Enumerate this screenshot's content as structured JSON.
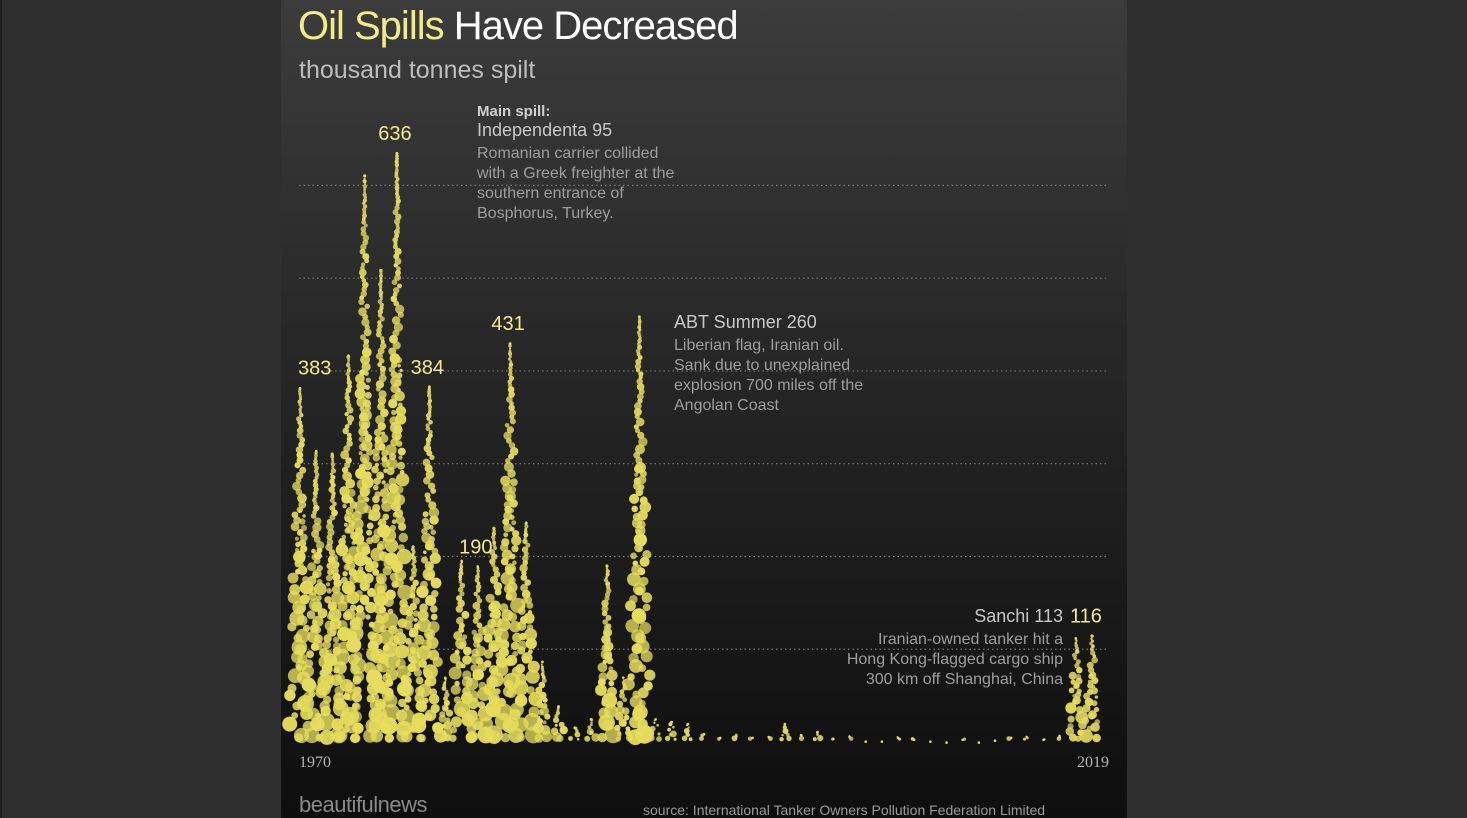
{
  "title": {
    "highlight": "Oil Spills",
    "rest": " Have Decreased"
  },
  "subtitle": "thousand tonnes spilt",
  "footer": {
    "brand": "beautifulnews",
    "source": "source: International Tanker Owners Pollution Federation Limited"
  },
  "colors": {
    "bubble": "#e6dd5c",
    "highlight": "#f2eb8a",
    "gridline": "#7a7a7a",
    "background_top": "#3c3c3c",
    "background_bottom": "#0e0e0e"
  },
  "chart_data": {
    "type": "bubble-column",
    "title": "Oil Spills Have Decreased",
    "ylabel": "thousand tonnes spilt",
    "x_start": 1970,
    "x_end": 2019,
    "ylim": [
      0,
      700
    ],
    "grid": "horizontal dotted",
    "x_tick_labels": [
      "1970",
      "2019"
    ],
    "years": [
      1970,
      1971,
      1972,
      1973,
      1974,
      1975,
      1976,
      1977,
      1978,
      1979,
      1980,
      1981,
      1982,
      1983,
      1984,
      1985,
      1986,
      1987,
      1988,
      1989,
      1990,
      1991,
      1992,
      1993,
      1994,
      1995,
      1996,
      1997,
      1998,
      1999,
      2000,
      2001,
      2002,
      2003,
      2004,
      2005,
      2006,
      2007,
      2008,
      2009,
      2010,
      2011,
      2012,
      2013,
      2014,
      2015,
      2016,
      2017,
      2018,
      2019
    ],
    "values": [
      383,
      315,
      311,
      418,
      612,
      510,
      636,
      212,
      384,
      70,
      197,
      190,
      231,
      431,
      238,
      88,
      40,
      17,
      26,
      191,
      71,
      460,
      26,
      23,
      21,
      10,
      6,
      8,
      6,
      7,
      21,
      9,
      12,
      5,
      7,
      2,
      2,
      6,
      4,
      2,
      1,
      4,
      1,
      3,
      6,
      6,
      4,
      7,
      113,
      116
    ],
    "value_labels": [
      {
        "year": 1970,
        "value": "383"
      },
      {
        "year": 1976,
        "value": "636"
      },
      {
        "year": 1978,
        "value": "384"
      },
      {
        "year": 1981,
        "value": "190"
      },
      {
        "year": 1983,
        "value": "431"
      },
      {
        "year": 2019,
        "value": "116"
      }
    ],
    "annotations": [
      {
        "year": 1976,
        "heading": "Main spill:",
        "name": "Independenta 95",
        "lines": [
          "Romanian carrier collided",
          "with a Greek freighter at the",
          "southern entrance of",
          "Bosphorus, Turkey."
        ]
      },
      {
        "year": 1983,
        "heading": "",
        "name": "ABT Summer 260",
        "lines": [
          "Liberian flag, Iranian oil.",
          "Sank due to unexplained",
          "explosion 700 miles off the",
          "Angolan Coast"
        ]
      },
      {
        "year": 2018,
        "heading": "",
        "name": "Sanchi 113",
        "lines": [
          "Iranian-owned tanker hit a",
          "Hong Kong-flagged cargo ship",
          "300 km off Shanghai, China"
        ]
      }
    ]
  }
}
